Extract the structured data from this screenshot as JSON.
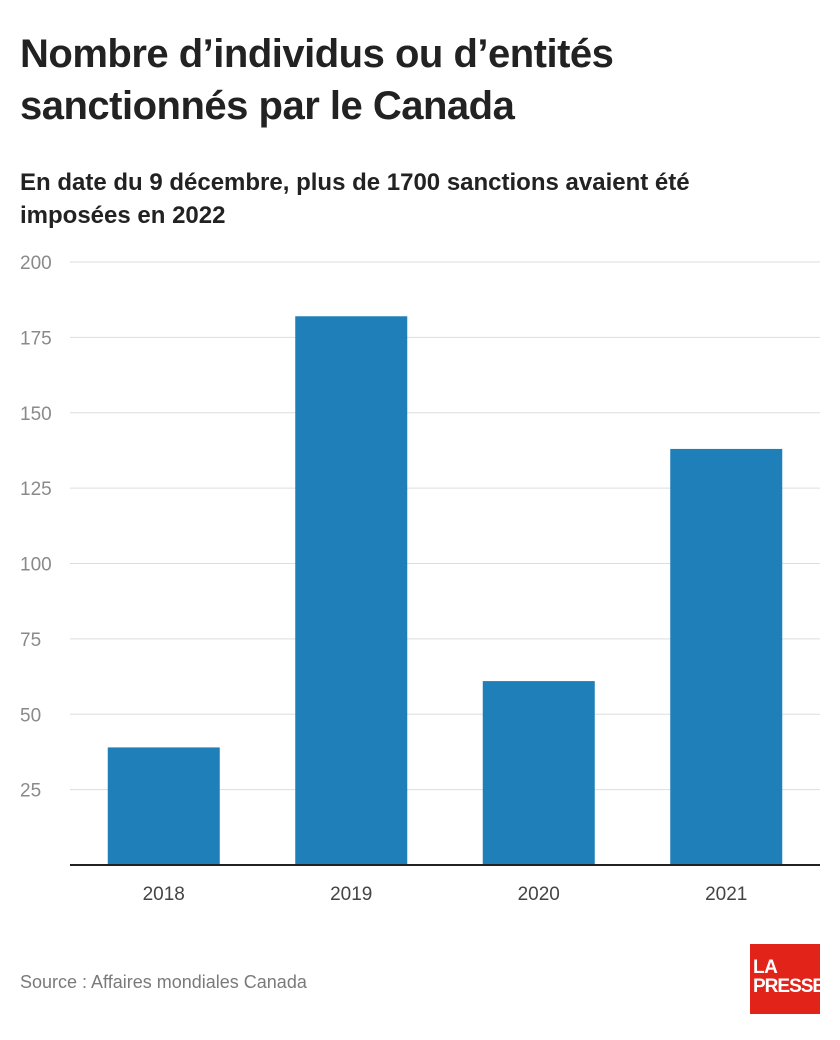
{
  "header": {
    "title": "Nombre d’individus ou d’entités sanctionnés par le Canada",
    "subtitle": "En date du 9 décembre, plus de 1700 sanctions avaient été imposées en 2022"
  },
  "chart_data": {
    "type": "bar",
    "title": "Nombre d’individus ou d’entités sanctionnés par le Canada",
    "subtitle": "En date du 9 décembre, plus de 1700 sanctions avaient été imposées en 2022",
    "categories": [
      "2018",
      "2019",
      "2020",
      "2021"
    ],
    "values": [
      39,
      182,
      61,
      138
    ],
    "xlabel": "",
    "ylabel": "",
    "ylim": [
      0,
      200
    ],
    "yticks": [
      25,
      50,
      75,
      100,
      125,
      150,
      175,
      200
    ],
    "grid": true,
    "legend": "none",
    "bar_color": "#1f7fb8"
  },
  "footer": {
    "source": "Source : Affaires mondiales Canada",
    "logo_line1": "LA",
    "logo_line2": "PRESSE"
  },
  "colors": {
    "bar": "#1f7fb8",
    "grid": "#dddddd",
    "axis": "#222222",
    "logo": "#e2231a"
  }
}
